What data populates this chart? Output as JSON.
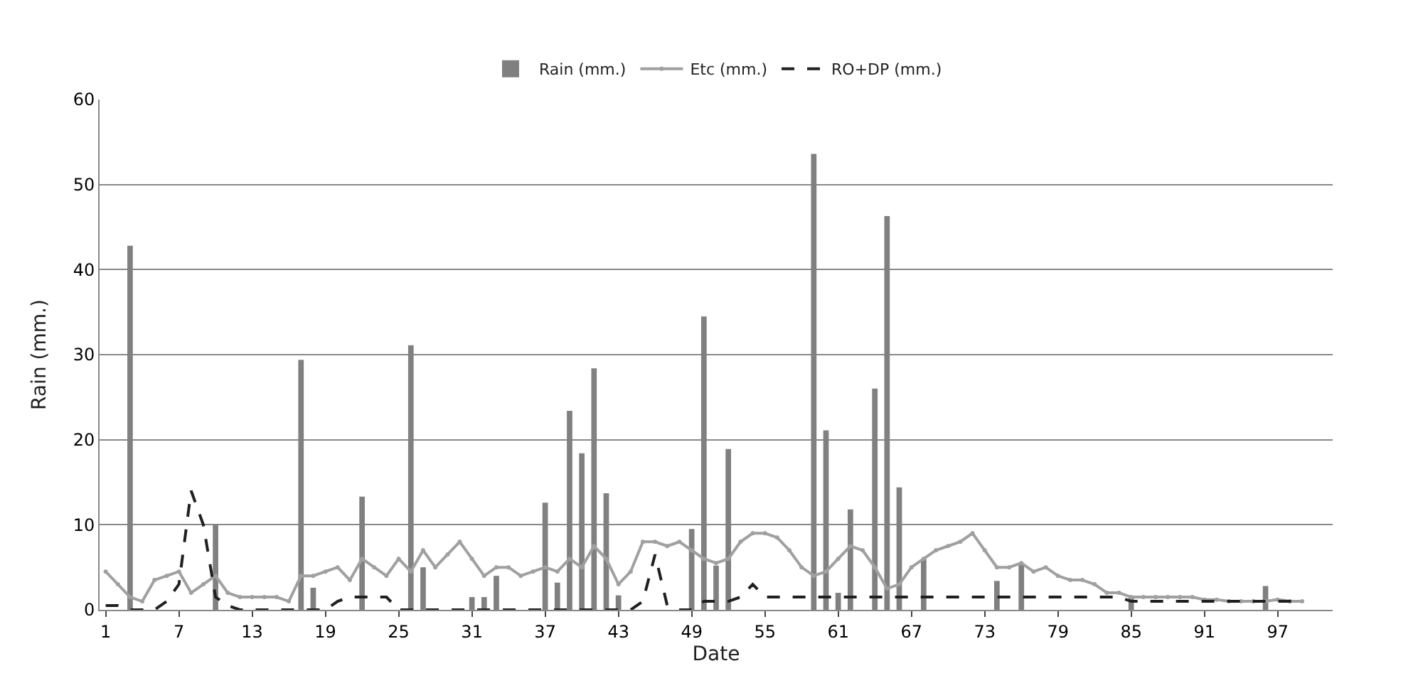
{
  "chart_data": {
    "type": "bar",
    "xlabel": "Date",
    "ylabel": "Rain (mm.)",
    "legend": "top",
    "grid": "y",
    "ylim": [
      0,
      60
    ],
    "yticks": [
      0,
      10,
      20,
      30,
      40,
      50,
      60
    ],
    "categories": [
      "1",
      null,
      null,
      null,
      null,
      null,
      "7",
      null,
      null,
      null,
      null,
      null,
      "13",
      null,
      null,
      null,
      null,
      null,
      "19",
      null,
      null,
      null,
      null,
      null,
      "25",
      null,
      null,
      null,
      null,
      null,
      "31",
      null,
      null,
      null,
      null,
      null,
      "37",
      null,
      null,
      null,
      null,
      null,
      "43",
      null,
      null,
      null,
      null,
      null,
      "49",
      null,
      null,
      null,
      null,
      null,
      "55",
      null,
      null,
      null,
      null,
      null,
      "61",
      null,
      null,
      null,
      null,
      null,
      "67",
      null,
      null,
      null,
      null,
      null,
      "73",
      null,
      null,
      null,
      null,
      null,
      "79",
      null,
      null,
      null,
      null,
      null,
      "85",
      null,
      null,
      null,
      null,
      null,
      "91",
      null,
      null,
      null,
      null,
      null,
      "97",
      null,
      null,
      null,
      null
    ],
    "series": [
      {
        "name": "Rain (mm.)",
        "color": "#808080",
        "values": [
          0,
          0,
          42.8,
          0,
          0,
          0,
          0,
          0,
          0,
          10,
          0,
          0,
          0,
          0,
          0,
          0,
          29.4,
          2.6,
          0,
          0,
          0,
          13.3,
          0,
          0,
          0,
          31.1,
          5,
          0,
          0,
          0,
          1.5,
          1.5,
          4,
          0,
          0,
          0,
          12.6,
          3.2,
          23.4,
          18.4,
          28.4,
          13.7,
          1.7,
          0,
          0,
          0,
          0,
          0,
          9.5,
          34.5,
          5.2,
          18.9,
          0,
          0,
          0,
          0,
          0,
          0,
          53.6,
          21.1,
          2,
          11.8,
          0,
          26,
          46.3,
          14.4,
          0,
          6,
          0,
          0,
          0,
          0,
          0,
          3.4,
          0,
          5.5,
          0,
          0,
          0,
          0,
          0,
          0,
          0,
          0,
          1.5,
          0,
          0,
          0,
          0,
          0,
          0,
          0,
          0,
          0,
          0,
          2.8,
          0,
          0,
          0,
          0,
          0
        ]
      },
      {
        "name": "Etc (mm.)",
        "type": "line",
        "color": "#a0a0a0",
        "marker": "circle",
        "line_style": "solid",
        "values": [
          4.5,
          3,
          1.5,
          1,
          3.5,
          4,
          4.5,
          2,
          3,
          4,
          2,
          1.5,
          1.5,
          1.5,
          1.5,
          1,
          4,
          4,
          4.5,
          5,
          3.5,
          6,
          5,
          4,
          6,
          4.5,
          7,
          5,
          6.5,
          8,
          6,
          4,
          5,
          5,
          4,
          4.5,
          5,
          4.5,
          6,
          5,
          7.5,
          6,
          3,
          4.5,
          8,
          8,
          7.5,
          8,
          7,
          6,
          5.5,
          6,
          8,
          9,
          9,
          8.5,
          7,
          5,
          4,
          4.5,
          6,
          7.5,
          7,
          5,
          2.5,
          3,
          5,
          6,
          7,
          7.5,
          8,
          9,
          7,
          5,
          5,
          5.5,
          4.5,
          5,
          4,
          3.5,
          3.5,
          3,
          2,
          2,
          1.5,
          1.5,
          1.5,
          1.5,
          1.5,
          1.5,
          1.2,
          1.2,
          1,
          1,
          1,
          1,
          1.2,
          1,
          1,
          null,
          null
        ]
      },
      {
        "name": "RO+DP (mm.)",
        "type": "line",
        "color": "#202020",
        "marker": "none",
        "line_style": "dashed",
        "values": [
          0.5,
          0.5,
          0,
          0,
          0,
          1,
          3,
          14,
          10,
          1.5,
          0.5,
          0,
          0,
          0,
          0,
          0,
          0,
          0,
          0,
          1,
          1.5,
          1.5,
          1.5,
          1.5,
          0,
          0,
          0,
          0,
          0,
          0,
          0,
          0,
          0,
          0,
          0,
          0,
          0,
          0,
          0,
          0,
          0,
          0,
          0,
          0,
          1,
          6.5,
          0.5,
          0,
          0,
          1,
          1,
          1,
          1.5,
          3,
          1.5,
          1.5,
          1.5,
          1.5,
          1.5,
          1.5,
          1.5,
          1.5,
          1.5,
          1.5,
          1.5,
          1.5,
          1.5,
          1.5,
          1.5,
          1.5,
          1.5,
          1.5,
          1.5,
          1.5,
          1.5,
          1.5,
          1.5,
          1.5,
          1.5,
          1.5,
          1.5,
          1.5,
          1.5,
          1.5,
          1,
          1,
          1,
          1,
          1,
          1,
          1,
          1,
          1,
          1,
          1,
          1,
          1,
          1,
          1,
          null,
          null
        ]
      }
    ]
  }
}
